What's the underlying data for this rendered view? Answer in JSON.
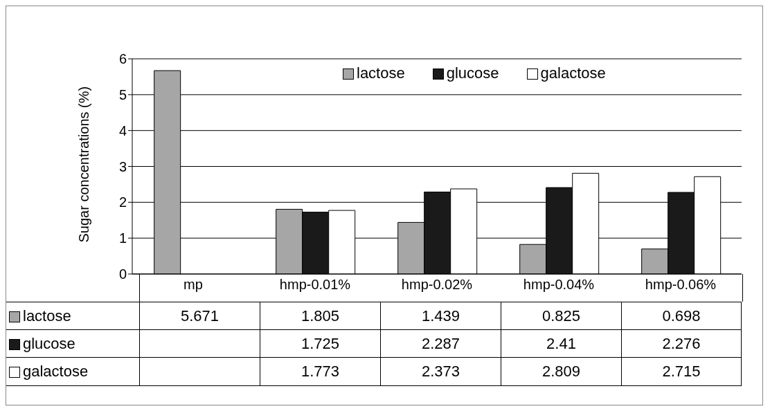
{
  "chart_data": {
    "type": "bar",
    "ylabel": "Sugar concentrations (%)",
    "categories": [
      "mp",
      "hmp-0.01%",
      "hmp-0.02%",
      "hmp-0.04%",
      "hmp-0.06%"
    ],
    "series": [
      {
        "name": "lactose",
        "color": "#a6a6a6",
        "values": [
          5.671,
          1.805,
          1.439,
          0.825,
          0.698
        ]
      },
      {
        "name": "glucose",
        "color": "#1a1a1a",
        "values": [
          null,
          1.725,
          2.287,
          2.41,
          2.276
        ]
      },
      {
        "name": "galactose",
        "color": "#ffffff",
        "values": [
          null,
          1.773,
          2.373,
          2.809,
          2.715
        ]
      }
    ],
    "ylim": [
      0,
      6
    ],
    "yticks": [
      0,
      1,
      2,
      3,
      4,
      5,
      6
    ],
    "grid": "y",
    "legend": "top right",
    "data_labels": true
  }
}
